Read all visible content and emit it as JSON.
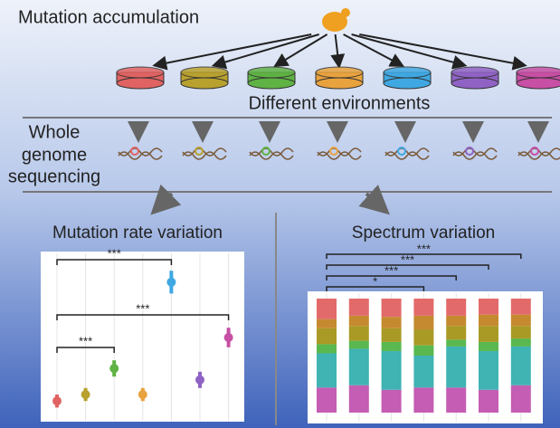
{
  "steps": {
    "accumulation": "Mutation accumulation",
    "environments": "Different environments",
    "sequencing": [
      "Whole",
      "genome",
      "sequencing"
    ]
  },
  "environment_colors": [
    "#e06262",
    "#b8a12e",
    "#5fb244",
    "#e8a23e",
    "#3fa8e2",
    "#8f62c4",
    "#c74fa4"
  ],
  "rate_panel": {
    "title": "Mutation rate variation",
    "ylim": [
      0,
      1
    ],
    "values": [
      0.11,
      0.15,
      0.31,
      0.15,
      0.84,
      0.24,
      0.5
    ],
    "errors": [
      0.04,
      0.04,
      0.05,
      0.04,
      0.07,
      0.05,
      0.06
    ],
    "brackets": [
      {
        "from": 0,
        "to": 4,
        "label": "***"
      },
      {
        "from": 0,
        "to": 6,
        "label": "***"
      },
      {
        "from": 0,
        "to": 2,
        "label": "***"
      }
    ]
  },
  "spectrum_panel": {
    "title": "Spectrum variation",
    "ylim": [
      0,
      100
    ],
    "series": [
      {
        "color": "#c45db3",
        "values": [
          22,
          24,
          20,
          22,
          22,
          20,
          24
        ]
      },
      {
        "color": "#40b3b3",
        "values": [
          30,
          32,
          34,
          28,
          36,
          34,
          34
        ]
      },
      {
        "color": "#59b84f",
        "values": [
          8,
          7,
          8,
          9,
          6,
          8,
          7
        ]
      },
      {
        "color": "#a99a26",
        "values": [
          14,
          13,
          12,
          14,
          12,
          14,
          11
        ]
      },
      {
        "color": "#c58a30",
        "values": [
          8,
          9,
          10,
          12,
          9,
          10,
          10
        ]
      },
      {
        "color": "#e36a6a",
        "values": [
          18,
          15,
          16,
          15,
          15,
          14,
          14
        ]
      }
    ],
    "brackets": [
      {
        "from": 0,
        "to": 6,
        "label": "***"
      },
      {
        "from": 0,
        "to": 5,
        "label": "***"
      },
      {
        "from": 0,
        "to": 4,
        "label": "***"
      },
      {
        "from": 0,
        "to": 3,
        "label": "*"
      }
    ]
  }
}
